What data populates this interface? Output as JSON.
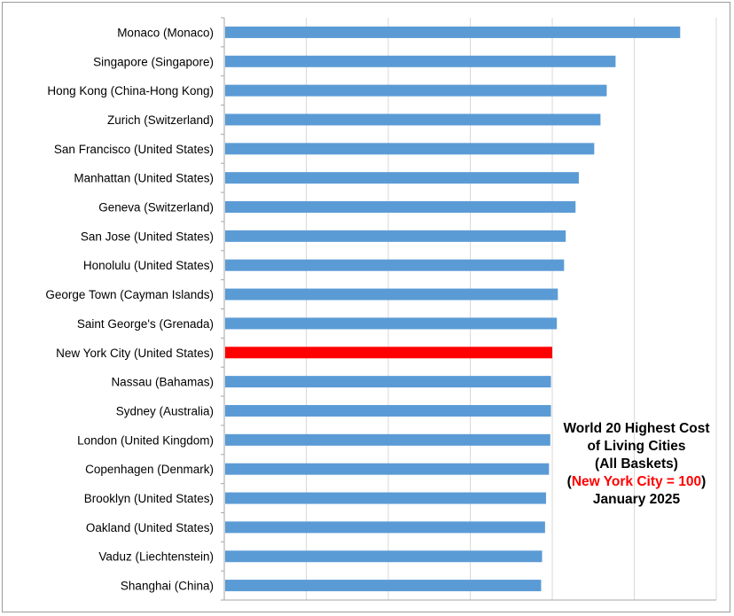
{
  "colors": {
    "bar": "#5b9bd5",
    "highlight": "#ff0000",
    "grid": "#d9d9d9",
    "axis": "#a6a6a6"
  },
  "title": {
    "line1": "World 20 Highest Cost",
    "line2": "of Living Cities",
    "line3": "(All Baskets)",
    "line4_open": "(",
    "line4_highlight": "New York City = 100",
    "line4_close": ")",
    "line5": "January 2025"
  },
  "chart_data": {
    "type": "bar",
    "orientation": "horizontal",
    "categories": [
      "Monaco (Monaco)",
      "Singapore (Singapore)",
      "Hong Kong (China-Hong Kong)",
      "Zurich (Switzerland)",
      "San Francisco (United States)",
      "Manhattan (United States)",
      "Geneva (Switzerland)",
      "San Jose (United States)",
      "Honolulu (United States)",
      "George Town (Cayman Islands)",
      "Saint George's (Grenada)",
      "New York City (United States)",
      "Nassau (Bahamas)",
      "Sydney (Australia)",
      "London (United Kingdom)",
      "Copenhagen (Denmark)",
      "Brooklyn (United States)",
      "Oakland (United States)",
      "Vaduz (Liechtenstein)",
      "Shanghai (China)"
    ],
    "values": [
      139,
      119.3,
      116.6,
      114.7,
      112.8,
      108.1,
      107.1,
      104.1,
      103.6,
      101.7,
      101.4,
      100,
      99.6,
      99.6,
      99.4,
      99,
      98.1,
      97.8,
      96.9,
      96.6
    ],
    "highlight_category": "New York City (United States)",
    "xlim": [
      0,
      150
    ],
    "grid": true,
    "x_tick_labels_visible": false
  }
}
